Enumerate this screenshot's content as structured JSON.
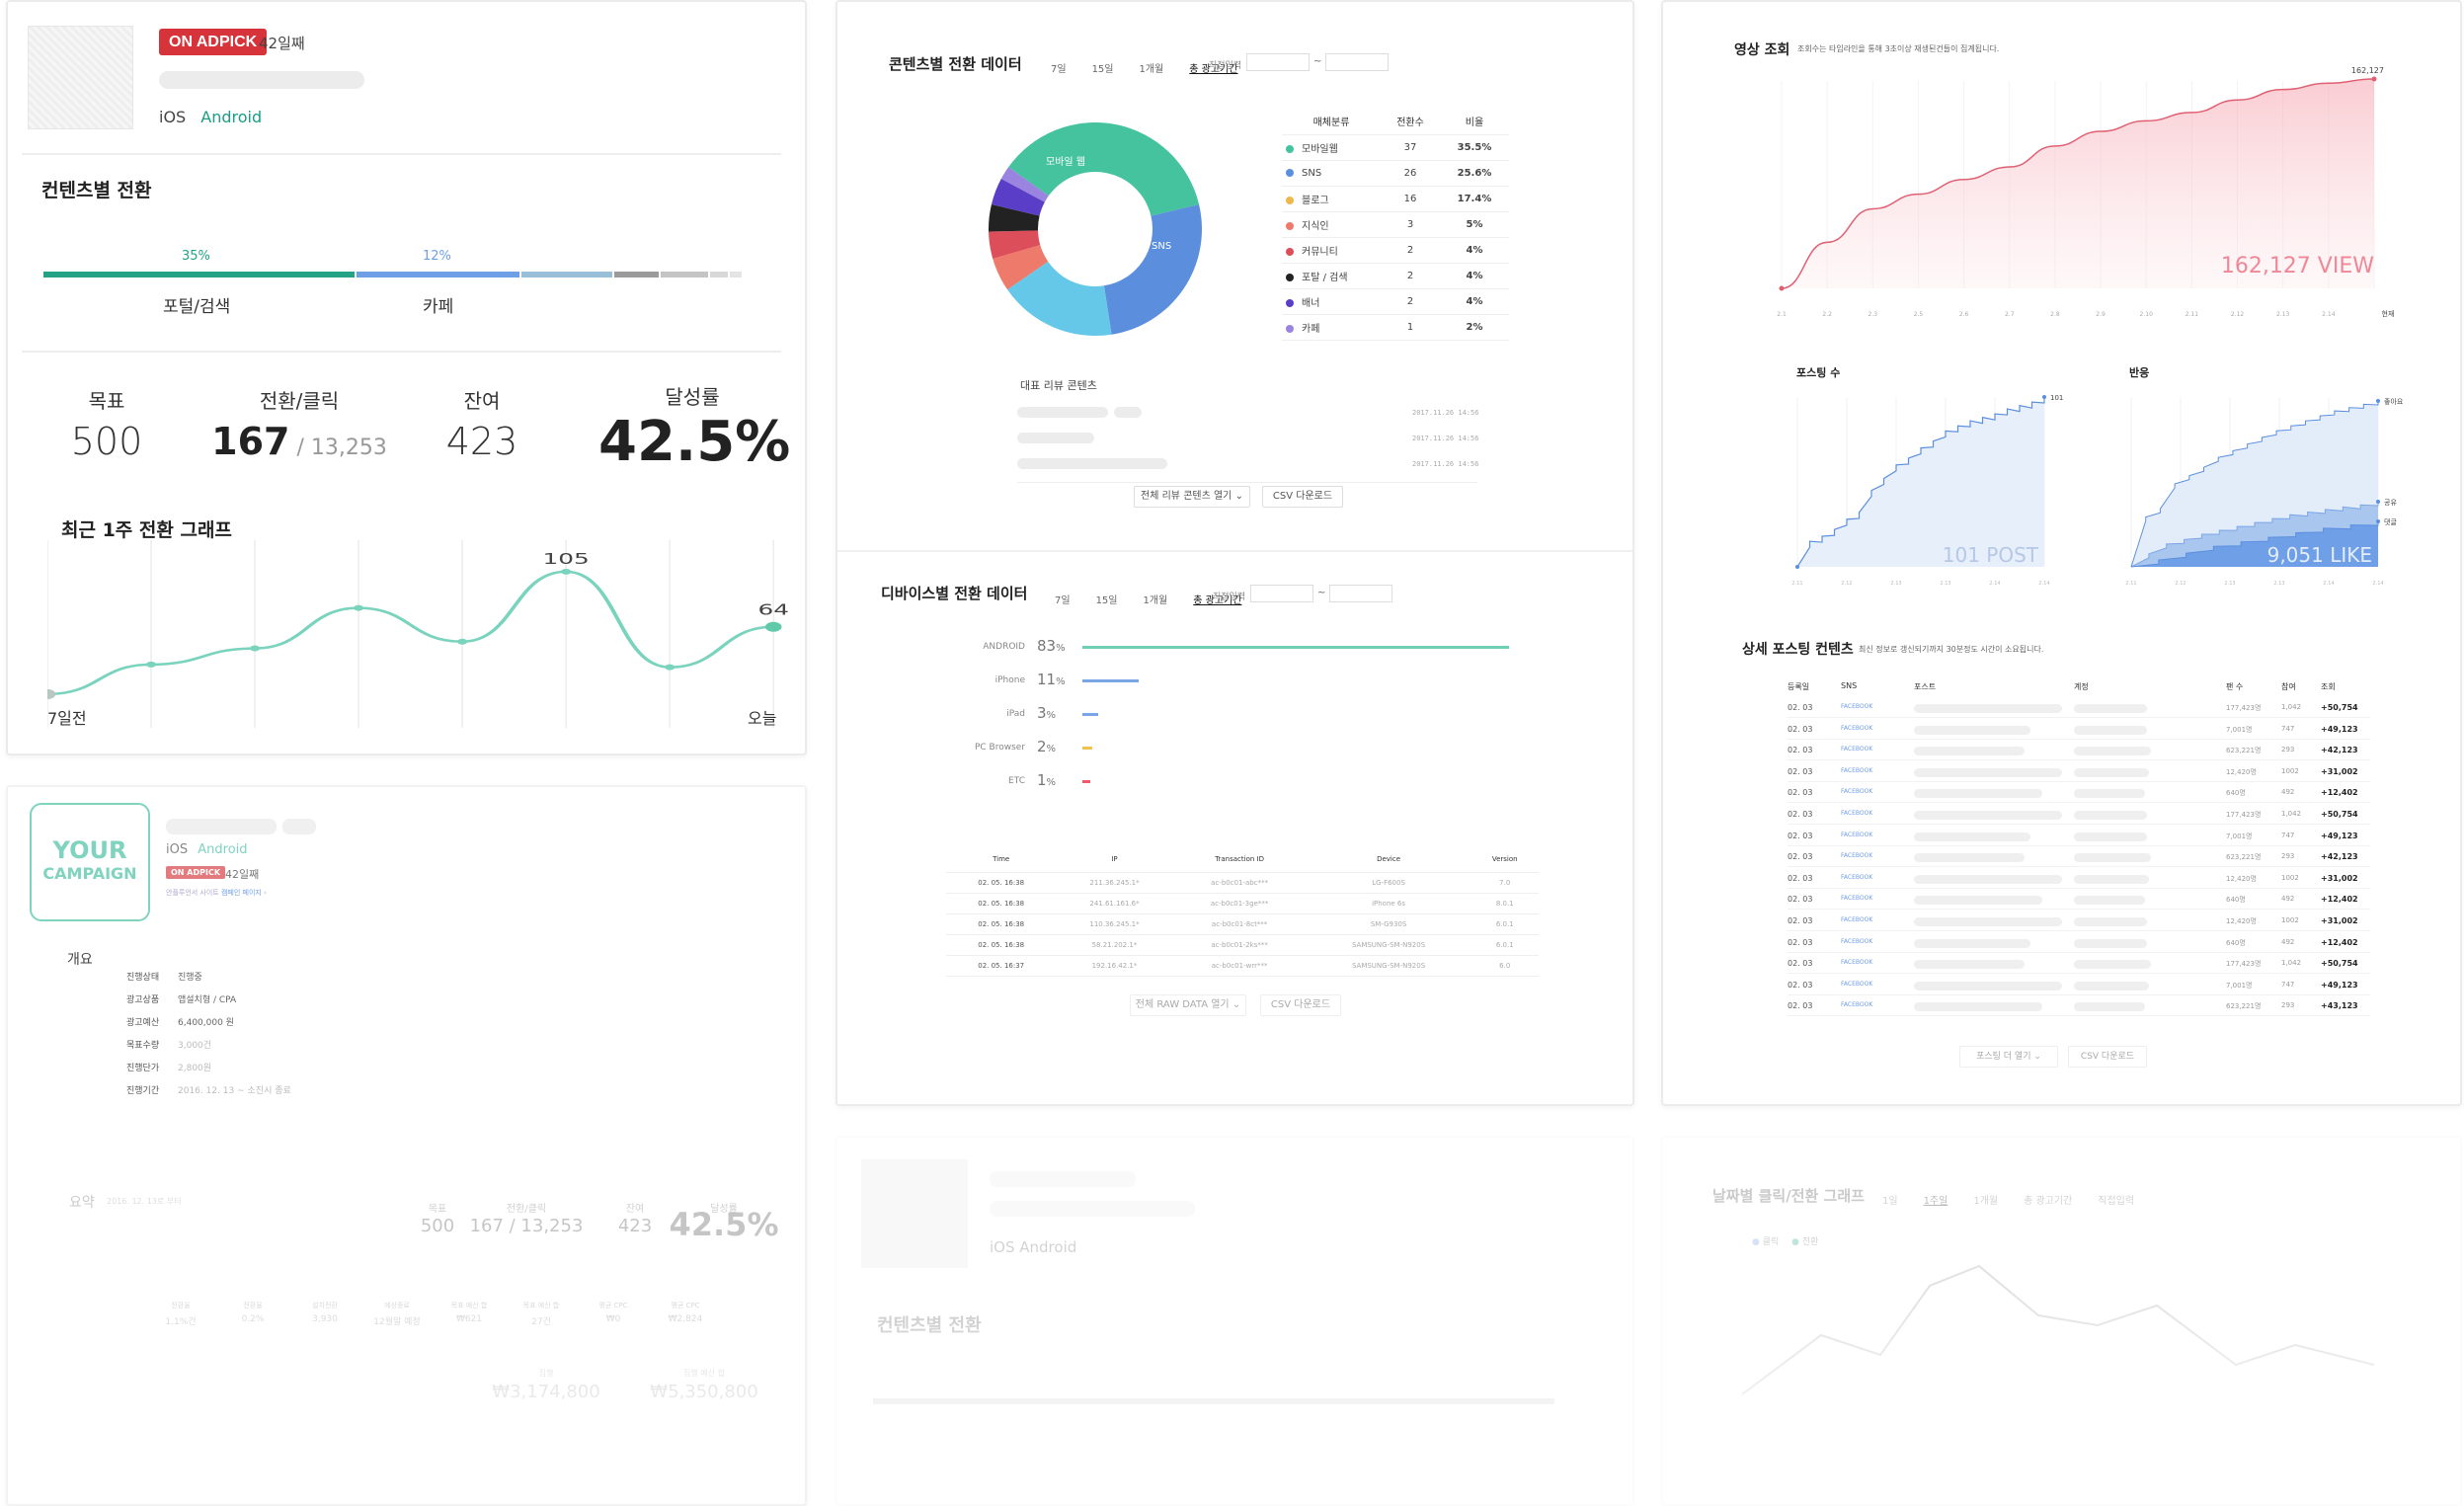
{
  "campaign": {
    "badge": "ON ADPICK",
    "days": "42일째",
    "os_ios": "iOS",
    "os_android": "Android",
    "section_title": "컨텐츠별 전환",
    "progress_labels": [
      {
        "pct": "35%",
        "name": "포털/검색"
      },
      {
        "pct": "12%",
        "name": "카페"
      }
    ],
    "stats": [
      {
        "label": "목표",
        "value": "500"
      },
      {
        "label": "전환/클릭",
        "value": "167",
        "sub": " / 13,253"
      },
      {
        "label": "잔여",
        "value": "423"
      },
      {
        "label": "달성률",
        "value": "42.5%"
      }
    ],
    "week_graph_title": "최근 1주 전환 그래프",
    "week_graph": {
      "values": [
        14,
        36,
        48,
        78,
        53,
        105,
        34,
        64
      ],
      "peak_label": "105",
      "last_label": "64",
      "x_start": "7일전",
      "x_end": "오늘"
    }
  },
  "contents": {
    "title": "콘텐츠별 전환 데이터",
    "tabs": [
      "7일",
      "15일",
      "1개월",
      "총 광고기간"
    ],
    "custom": "직접입력",
    "range_sep": "~",
    "donut_labels": [
      "모바일 웹",
      "SNS"
    ],
    "table_headers": [
      "매체분류",
      "전환수",
      "비율"
    ],
    "rows": [
      {
        "name": "모바일웹",
        "count": "37",
        "ratio": "35.5%",
        "color": "#45c39f"
      },
      {
        "name": "SNS",
        "count": "26",
        "ratio": "25.6%",
        "color": "#5b8fde"
      },
      {
        "name": "블로그",
        "count": "16",
        "ratio": "17.4%",
        "color": "#f0b84a"
      },
      {
        "name": "지식인",
        "count": "3",
        "ratio": "5%",
        "color": "#ee7a6b"
      },
      {
        "name": "커뮤니티",
        "count": "2",
        "ratio": "4%",
        "color": "#dd4e5b"
      },
      {
        "name": "포탈 / 검색",
        "count": "2",
        "ratio": "4%",
        "color": "#222222"
      },
      {
        "name": "배너",
        "count": "2",
        "ratio": "4%",
        "color": "#5a3ec8"
      },
      {
        "name": "카페",
        "count": "1",
        "ratio": "2%",
        "color": "#9a84e0"
      }
    ],
    "review_title": "대표 리뷰 콘텐츠",
    "review_dates": [
      "2017.11.26 14:56",
      "2017.11.26 14:56",
      "2017.11.26 14:56"
    ],
    "btn_more": "전체 리뷰 콘텐츠 열기",
    "btn_csv": "CSV 다운로드"
  },
  "devices": {
    "title": "디바이스별 전환 데이터",
    "tabs": [
      "7일",
      "15일",
      "1개월",
      "총 광고기간"
    ],
    "custom": "직접입력",
    "range_sep": "~",
    "bars": [
      {
        "name": "ANDROID",
        "pct": 83,
        "label": "83",
        "color": "#6fcfb4"
      },
      {
        "name": "iPhone",
        "pct": 11,
        "label": "11",
        "color": "#7aa6e6"
      },
      {
        "name": "iPad",
        "pct": 3,
        "label": "3",
        "color": "#7aa6e6"
      },
      {
        "name": "PC Browser",
        "pct": 2,
        "label": "2",
        "color": "#f2c14e"
      },
      {
        "name": "ETC",
        "pct": 1,
        "label": "1",
        "color": "#ee5a6a"
      }
    ],
    "pct_sign": "%",
    "raw_headers": [
      "Time",
      "IP",
      "Transaction ID",
      "Device",
      "Version"
    ],
    "raw_rows": [
      [
        "02. 05.  16:38",
        "211.36.245.1*",
        "ac-b0c01-abc***",
        "LG-F600S",
        "7.0"
      ],
      [
        "02. 05.  16:38",
        "241.61.161.6*",
        "ac-b0c01-3ge***",
        "iPhone 6s",
        "8.0.1"
      ],
      [
        "02. 05.  16:38",
        "110.36.245.1*",
        "ac-b0c01-8ct***",
        "SM-G930S",
        "6.0.1"
      ],
      [
        "02. 05.  16:38",
        "58.21.202.1*",
        "ac-b0c01-2ks***",
        "SAMSUNG-SM-N920S",
        "6.0.1"
      ],
      [
        "02. 05.  16:37",
        "192.16.42.1*",
        "ac-b0c01-wrr***",
        "SAMSUNG-SM-N920S",
        "6.0"
      ]
    ],
    "btn_more": "전체 RAW DATA 열기",
    "btn_csv": "CSV 다운로드"
  },
  "video": {
    "title": "영상 조회",
    "desc": "조회수는 타임라인을 통해 3초이상 재생된건들이 집계됩니다.",
    "top_label": "162,127",
    "big_label": "162,127 VIEW",
    "x_last": "현재",
    "x_ticks": [
      "2.1",
      "2.2",
      "2.3",
      "2.5",
      "2.6",
      "2.7",
      "2.8",
      "2.9",
      "2.10",
      "2.11",
      "2.12",
      "2.13",
      "2.14"
    ],
    "curve": [
      0,
      22,
      38,
      45,
      52,
      58,
      68,
      75,
      80,
      84,
      90,
      95,
      98,
      100
    ]
  },
  "posting": {
    "title": "포스팅 수",
    "top_label": "101",
    "big_label": "101 POST",
    "x_ticks": [
      "2.11",
      "2.12",
      "2.13",
      "2.13",
      "2.14",
      "2.14"
    ]
  },
  "reaction": {
    "title": "반응",
    "labels": [
      "좋아요",
      "공유",
      "댓글"
    ],
    "big_label": "9,051 LIKE",
    "x_ticks": [
      "2.11",
      "2.12",
      "2.13",
      "2.13",
      "2.14",
      "2.14"
    ]
  },
  "detail": {
    "title": "상세 포스팅 컨텐츠",
    "desc": "최신 정보로 갱신되기까지 30분정도 시간이 소요됩니다.",
    "headers": [
      "등록일",
      "SNS",
      "포스트",
      "계정",
      "팬 수",
      "참여",
      "조회"
    ],
    "rows": [
      [
        "02. 03",
        "FACEBOOK",
        "177,423명",
        "1,042",
        "+50,754"
      ],
      [
        "02. 03",
        "FACEBOOK",
        "7,001명",
        "747",
        "+49,123"
      ],
      [
        "02. 03",
        "FACEBOOK",
        "623,221명",
        "293",
        "+42,123"
      ],
      [
        "02. 03",
        "FACEBOOK",
        "12,420명",
        "1002",
        "+31,002"
      ],
      [
        "02. 03",
        "FACEBOOK",
        "640명",
        "492",
        "+12,402"
      ],
      [
        "02. 03",
        "FACEBOOK",
        "177,423명",
        "1,042",
        "+50,754"
      ],
      [
        "02. 03",
        "FACEBOOK",
        "7,001명",
        "747",
        "+49,123"
      ],
      [
        "02. 03",
        "FACEBOOK",
        "623,221명",
        "293",
        "+42,123"
      ],
      [
        "02. 03",
        "FACEBOOK",
        "12,420명",
        "1002",
        "+31,002"
      ],
      [
        "02. 03",
        "FACEBOOK",
        "640명",
        "492",
        "+12,402"
      ],
      [
        "02. 03",
        "FACEBOOK",
        "12,420명",
        "1002",
        "+31,002"
      ],
      [
        "02. 03",
        "FACEBOOK",
        "640명",
        "492",
        "+12,402"
      ],
      [
        "02. 03",
        "FACEBOOK",
        "177,423명",
        "1,042",
        "+50,754"
      ],
      [
        "02. 03",
        "FACEBOOK",
        "7,001명",
        "747",
        "+49,123"
      ],
      [
        "02. 03",
        "FACEBOOK",
        "623,221명",
        "293",
        "+43,123"
      ]
    ],
    "btn_more": "포스팅 더 열기",
    "btn_csv": "CSV 다운로드"
  },
  "campaign2": {
    "logo_line1": "YOUR",
    "logo_line2": "CAMPAIGN",
    "os_ios": "iOS",
    "os_android": "Android",
    "badge": "ON ADPICK",
    "days": "42일째",
    "link_prefix": "안플루언서 사이트",
    "link": "캠페인 페이지",
    "overview_title": "개요",
    "overview": [
      {
        "k": "진행상태",
        "v": "진행중"
      },
      {
        "k": "광고상품",
        "v": "앱설치형 / CPA"
      },
      {
        "k": "광고예산",
        "v": "6,400,000 원"
      },
      {
        "k": "목표수량",
        "v": "3,000건"
      },
      {
        "k": "진행단가",
        "v": "2,800원"
      },
      {
        "k": "진행기간",
        "v": "2016. 12. 13 ~ 소진시 종료"
      }
    ],
    "summary_title": "요약",
    "summary_date": "2016. 12. 13로 부터",
    "summary_stats": [
      {
        "label": "목표",
        "value": "500"
      },
      {
        "label": "전환/클릭",
        "value": "167 / 13,253"
      },
      {
        "label": "잔여",
        "value": "423"
      },
      {
        "label": "달성률",
        "value": "42.5%"
      }
    ],
    "summary_small": [
      {
        "k": "전환율",
        "v": "1.1%건"
      },
      {
        "k": "전환율",
        "v": "0.2%"
      },
      {
        "k": "설치전환",
        "v": "3,930"
      },
      {
        "k": "예상종료",
        "v": "12월말 예정"
      },
      {
        "k": "목표 예산 합",
        "v": "₩621"
      },
      {
        "k": "목표 예산 합",
        "v": "27건"
      },
      {
        "k": "평균 CPC",
        "v": "₩0"
      },
      {
        "k": "평균 CPC",
        "v": "₩2,824"
      }
    ],
    "totals": [
      {
        "k": "집행",
        "v": "₩3,174,800"
      },
      {
        "k": "집행 예산 합",
        "v": "₩5,350,800"
      }
    ]
  },
  "ghost_daily": {
    "title": "날짜별 클릭/전환 그래프",
    "tabs": [
      "1일",
      "1주일",
      "1개월",
      "총 광고기간",
      "직접입력"
    ],
    "legend": [
      "클릭",
      "전환"
    ]
  },
  "ghost_profile": {
    "os": "iOS  Android",
    "section": "컨텐츠별 전환"
  }
}
